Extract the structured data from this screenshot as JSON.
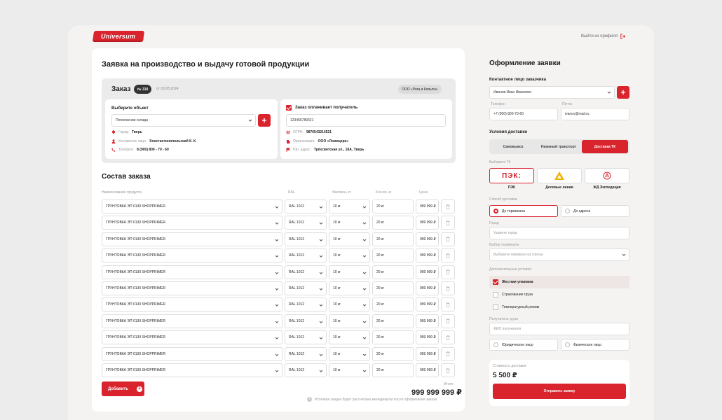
{
  "brand": {
    "logo": "Universum",
    "logout": "Выйти из профиля"
  },
  "main": {
    "title": "Заявка на производство и выдачу готовой продукции",
    "order": {
      "label": "Заказ",
      "number": "№ 310",
      "date": "от 03.08.2024",
      "org": "ООО «Рога и Копыта»",
      "object": {
        "title": "Выберите объект",
        "select_value": "Пополнение склада",
        "city_k": "Город:",
        "city_v": "Тверь",
        "contact_k": "Контактное лицо:",
        "contact_v": "Константинопольский К. К.",
        "phone_k": "Телефон:",
        "phone_v": "8 (900) 800 - 70 - 60"
      },
      "payer": {
        "checkbox_label": "Заказ оплачивает получатель",
        "inn_value": "123456789321",
        "ogrn_k": "ОГРН:",
        "ogrn_v": "9876543216521",
        "org_k": "Организация:",
        "org_v": "ООО «Ломицера»",
        "addr_k": "Юр. адрес:",
        "addr_v": "Трёхсвятская ул., 18А, Тверь"
      }
    },
    "composition": {
      "title": "Состав заказа",
      "headers": {
        "product": "Наименование продукта",
        "ral": "RAL",
        "pack": "Фасовка, кг",
        "qty": "Кол-во, кг",
        "price": "Цена"
      },
      "rows": [
        {
          "product": "ГРУНТОВКА ЭП 0130 SHOPPRIMER",
          "ral": "RAL 1012",
          "pack": "10 кг",
          "qty": "20 кг",
          "price": "999 999 ₽"
        },
        {
          "product": "ГРУНТОВКА ЭП 0130 SHOPPRIMER",
          "ral": "RAL 1012",
          "pack": "10 кг",
          "qty": "20 кг",
          "price": "999 999 ₽"
        },
        {
          "product": "ГРУНТОВКА ЭП 0130 SHOPPRIMER",
          "ral": "RAL 1012",
          "pack": "10 кг",
          "qty": "20 кг",
          "price": "999 999 ₽"
        },
        {
          "product": "ГРУНТОВКА ЭП 0130 SHOPPRIMER",
          "ral": "RAL 1012",
          "pack": "10 кг",
          "qty": "20 кг",
          "price": "999 999 ₽"
        },
        {
          "product": "ГРУНТОВКА ЭП 0130 SHOPPRIMER",
          "ral": "RAL 1012",
          "pack": "10 кг",
          "qty": "20 кг",
          "price": "999 999 ₽"
        },
        {
          "product": "ГРУНТОВКА ЭП 0130 SHOPPRIMER",
          "ral": "RAL 1012",
          "pack": "10 кг",
          "qty": "20 кг",
          "price": "999 999 ₽"
        },
        {
          "product": "ГРУНТОВКА ЭП 0130 SHOPPRIMER",
          "ral": "RAL 1012",
          "pack": "10 кг",
          "qty": "20 кг",
          "price": "999 999 ₽"
        },
        {
          "product": "ГРУНТОВКА ЭП 0130 SHOPPRIMER",
          "ral": "RAL 1012",
          "pack": "10 кг",
          "qty": "20 кг",
          "price": "999 999 ₽"
        },
        {
          "product": "ГРУНТОВКА ЭП 0130 SHOPPRIMER",
          "ral": "RAL 1012",
          "pack": "10 кг",
          "qty": "20 кг",
          "price": "999 999 ₽"
        },
        {
          "product": "ГРУНТОВКА ЭП 0130 SHOPPRIMER",
          "ral": "RAL 1012",
          "pack": "10 кг",
          "qty": "20 кг",
          "price": "999 999 ₽"
        },
        {
          "product": "ГРУНТОВКА ЭП 0130 SHOPPRIMER",
          "ral": "RAL 1012",
          "pack": "10 кг",
          "qty": "20 кг",
          "price": "999 999 ₽"
        }
      ],
      "add_label": "Добавить",
      "total_label": "Итого:",
      "total_value": "999 999 999 ₽",
      "note": "Итоговая скидка будет рассчитана менеджером после оформления заказа"
    }
  },
  "side": {
    "title": "Оформление заявки",
    "contact_title": "Контактное лицо заказчика",
    "contact_value": "Иванов Иван Иванович",
    "phone_label": "Телефон",
    "phone_value": "+7 (900) 800-70-60",
    "mail_label": "Почта",
    "mail_value": "ivanov@mail.ru",
    "delivery_title": "Условия доставки",
    "delivery_tabs": [
      "Самовывоз",
      "Наемный транспорт",
      "Доставка ТК"
    ],
    "tk_title": "Выберите ТК",
    "tk": [
      "ПЭК",
      "Деловые линии",
      "ЖД Экспедиция"
    ],
    "tk_logo_pek": "ПЭК:",
    "method_title": "Способ доставки",
    "method": [
      "До терминала",
      "До адреса"
    ],
    "city_label": "Город",
    "city_placeholder": "Укажите город",
    "terminal_label": "Выбор терминала",
    "terminal_placeholder": "Выберите терминал из списка",
    "extra_title": "Дополнительные условия",
    "extra": [
      "Жесткая упаковка",
      "Страхование груза",
      "Температурный режим"
    ],
    "receiver_label": "Получатель груза",
    "receiver_placeholder": "ФИО получателя",
    "person": [
      "Юридическое лицо",
      "Физическое лицо"
    ],
    "cost_label": "Стоимость доставки:",
    "cost_value": "5 500 ₽",
    "send_label": "Отправить заявку"
  },
  "colors": {
    "accent": "#d9232d"
  }
}
